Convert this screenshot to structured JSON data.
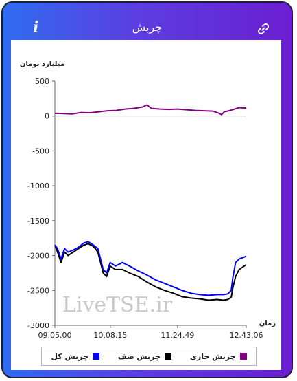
{
  "header": {
    "title": "چربش",
    "info_icon_glyph": "i",
    "info_icon": "info-icon",
    "link_icon": "link-icon"
  },
  "watermark": "LiveTSE.ir",
  "chart_data": {
    "type": "line",
    "ylabel": "میلیارد تومان",
    "xlabel": "زمان",
    "ylim": [
      -3000,
      500
    ],
    "yticks": [
      500,
      0,
      -500,
      -1000,
      -1500,
      -2000,
      -2500,
      -3000
    ],
    "xticks": [
      "09.05.00",
      "10.08.15",
      "11.24.49",
      "12.43.06"
    ],
    "xticks_minutes": [
      545,
      608.25,
      684.82,
      763.1
    ],
    "grid": false,
    "legend_position": "bottom",
    "series": [
      {
        "name": "چربش جاری",
        "color": "#800080",
        "x": [
          545,
          555,
          565,
          575,
          585,
          595,
          605,
          615,
          625,
          635,
          645,
          650,
          655,
          665,
          675,
          685,
          695,
          705,
          715,
          725,
          732,
          735,
          738,
          745,
          750,
          755,
          763.1
        ],
        "values": [
          40,
          35,
          30,
          50,
          45,
          60,
          75,
          80,
          100,
          110,
          130,
          160,
          110,
          100,
          95,
          100,
          90,
          80,
          75,
          70,
          40,
          20,
          60,
          80,
          100,
          120,
          115
        ]
      },
      {
        "name": "چربش صف",
        "color": "#000000",
        "x": [
          545,
          548,
          552,
          556,
          560,
          566,
          572,
          578,
          583,
          589,
          594,
          600,
          604,
          608,
          614,
          622,
          630,
          640,
          650,
          660,
          670,
          680,
          690,
          700,
          710,
          720,
          730,
          737,
          742,
          746,
          748,
          751,
          755,
          763.1
        ],
        "values": [
          -1850,
          -1950,
          -2100,
          -1950,
          -2000,
          -1950,
          -1900,
          -1850,
          -1830,
          -1870,
          -1950,
          -2250,
          -2300,
          -2150,
          -2200,
          -2200,
          -2250,
          -2300,
          -2380,
          -2450,
          -2500,
          -2540,
          -2590,
          -2610,
          -2620,
          -2640,
          -2630,
          -2640,
          -2630,
          -2600,
          -2450,
          -2300,
          -2200,
          -2130
        ]
      },
      {
        "name": "چربش کل",
        "color": "#0000ff",
        "x": [
          545,
          548,
          552,
          556,
          560,
          566,
          572,
          578,
          583,
          589,
          594,
          600,
          604,
          608,
          614,
          622,
          630,
          640,
          650,
          660,
          670,
          680,
          690,
          700,
          710,
          720,
          730,
          737,
          742,
          746,
          748,
          751,
          755,
          763.1
        ],
        "values": [
          -1850,
          -1900,
          -2050,
          -1900,
          -1950,
          -1920,
          -1880,
          -1820,
          -1800,
          -1850,
          -1900,
          -2200,
          -2250,
          -2100,
          -2150,
          -2100,
          -2150,
          -2220,
          -2280,
          -2350,
          -2400,
          -2450,
          -2500,
          -2540,
          -2560,
          -2570,
          -2560,
          -2560,
          -2550,
          -2500,
          -2300,
          -2100,
          -2050,
          -2010
        ]
      }
    ]
  }
}
